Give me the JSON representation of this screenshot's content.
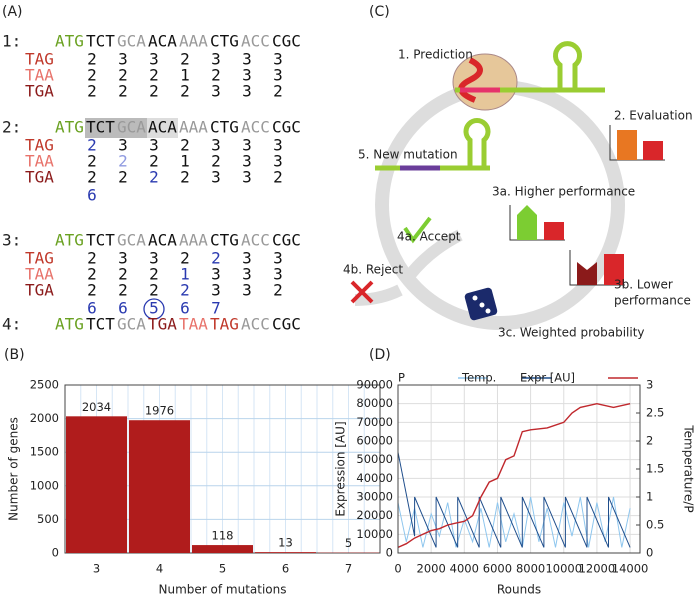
{
  "panel_a": {
    "label": "(A)",
    "steps": [
      {
        "number": "1:",
        "codons": [
          "ATG",
          "TCT",
          "GCA",
          "ACA",
          "AAA",
          "CTG",
          "ACC",
          "CGC"
        ],
        "rows": [
          {
            "name": "TAG",
            "values": [
              2,
              3,
              3,
              2,
              3,
              3,
              3
            ]
          },
          {
            "name": "TAA",
            "values": [
              2,
              2,
              2,
              1,
              2,
              3,
              3
            ]
          },
          {
            "name": "TGA",
            "values": [
              2,
              2,
              2,
              2,
              3,
              3,
              2
            ]
          }
        ]
      },
      {
        "number": "2:",
        "codons": [
          "ATG",
          "TCT",
          "GCA",
          "ACA",
          "AAA",
          "CTG",
          "ACC",
          "CGC"
        ],
        "rows": [
          {
            "name": "TAG",
            "values": [
              2,
              3,
              3,
              2,
              3,
              3,
              3
            ]
          },
          {
            "name": "TAA",
            "values": [
              2,
              2,
              2,
              1,
              2,
              3,
              3
            ]
          },
          {
            "name": "TGA",
            "values": [
              2,
              2,
              2,
              2,
              3,
              3,
              2
            ]
          }
        ],
        "sums": [
          6
        ]
      },
      {
        "number": "3:",
        "codons": [
          "ATG",
          "TCT",
          "GCA",
          "ACA",
          "AAA",
          "CTG",
          "ACC",
          "CGC"
        ],
        "rows": [
          {
            "name": "TAG",
            "values": [
              2,
              3,
              3,
              2,
              2,
              3,
              3
            ]
          },
          {
            "name": "TAA",
            "values": [
              2,
              2,
              2,
              1,
              3,
              3,
              3
            ]
          },
          {
            "name": "TGA",
            "values": [
              2,
              2,
              2,
              2,
              3,
              3,
              2
            ]
          }
        ],
        "sums": [
          6,
          6,
          5,
          6,
          7
        ]
      },
      {
        "number": "4:",
        "codons": [
          "ATG",
          "TCT",
          "GCA",
          "TGA",
          "TAA",
          "TAG",
          "ACC",
          "CGC"
        ]
      }
    ]
  },
  "panel_c": {
    "label": "(C)",
    "steps": [
      "1. Prediction",
      "2. Evaluation",
      "5. New mutation",
      "3a. Higher performance",
      "4a. Accept",
      "4b. Reject",
      "3b. Lower",
      "performance",
      "3c. Weighted probability"
    ]
  },
  "chart_data": [
    {
      "type": "bar",
      "label": "(B)",
      "x_label": "Number of mutations",
      "y_label": "Number of genes",
      "categories": [
        "3",
        "4",
        "5",
        "6",
        "7"
      ],
      "values": [
        2034,
        1976,
        118,
        13,
        5
      ],
      "color": "#b01c1c",
      "ylim": [
        0,
        2500
      ],
      "yticks": [
        0,
        500,
        1000,
        1500,
        2000,
        2500
      ],
      "grid": true
    },
    {
      "type": "line",
      "label": "(D)",
      "x_label": "Rounds",
      "y_label": "Expression [AU]",
      "y2_label": "Temperature/P",
      "xlim": [
        0,
        14600
      ],
      "xticks": [
        0,
        2000,
        4000,
        6000,
        8000,
        10000,
        12000,
        14000
      ],
      "ylim": [
        0,
        90000
      ],
      "yticks": [
        0,
        10000,
        20000,
        30000,
        40000,
        50000,
        60000,
        70000,
        80000,
        90000
      ],
      "y2lim": [
        0,
        3
      ],
      "y2ticks": [
        0,
        0.5,
        1,
        1.5,
        2,
        2.5,
        3
      ],
      "grid": true,
      "series": [
        {
          "name": "P",
          "color": "#8ec6ee",
          "axis": "y2",
          "x": [
            0,
            500,
            1000,
            1500,
            2000,
            2500,
            3000,
            3500,
            4000,
            4500,
            5000,
            5500,
            6000,
            6500,
            7000,
            7500,
            8000,
            8500,
            9000,
            9500,
            10000,
            10500,
            11000,
            11500,
            12000,
            12500,
            13000,
            13500,
            14000
          ],
          "values": [
            0.9,
            0.2,
            0.8,
            0.1,
            0.7,
            0.3,
            0.9,
            0.1,
            0.6,
            0.2,
            0.8,
            0.1,
            0.9,
            0.2,
            0.7,
            0.1,
            1,
            0.2,
            0.8,
            0.1,
            0.9,
            0.3,
            1,
            0.1,
            0.9,
            0.2,
            1,
            0.1,
            0.8
          ]
        },
        {
          "name": "Temp.",
          "color": "#1f4e8c",
          "axis": "y2",
          "x": [
            0,
            1000,
            1000,
            2300,
            2300,
            3600,
            3600,
            4900,
            4900,
            6200,
            6200,
            7500,
            7500,
            8800,
            8800,
            10100,
            10100,
            11400,
            11400,
            12700,
            12700,
            14000
          ],
          "values": [
            1.8,
            0.3,
            1,
            0.1,
            1,
            0.1,
            1,
            0.1,
            1,
            0.1,
            1,
            0.1,
            1,
            0.1,
            1,
            0.1,
            1,
            0.1,
            1,
            0.1,
            1,
            0.1
          ]
        },
        {
          "name": "Expr [AU]",
          "color": "#c0282d",
          "x": [
            0,
            500,
            1000,
            1500,
            2000,
            2500,
            3000,
            3500,
            4000,
            4500,
            5000,
            5500,
            6000,
            6500,
            7000,
            7500,
            8000,
            9000,
            10000,
            10500,
            11000,
            12000,
            13000,
            14000
          ],
          "values": [
            3000,
            5000,
            8000,
            10000,
            12000,
            13000,
            15000,
            16000,
            17000,
            20000,
            30000,
            38000,
            40000,
            50000,
            52000,
            65000,
            66000,
            67000,
            70000,
            75000,
            78000,
            80000,
            78000,
            80000
          ]
        }
      ]
    }
  ]
}
